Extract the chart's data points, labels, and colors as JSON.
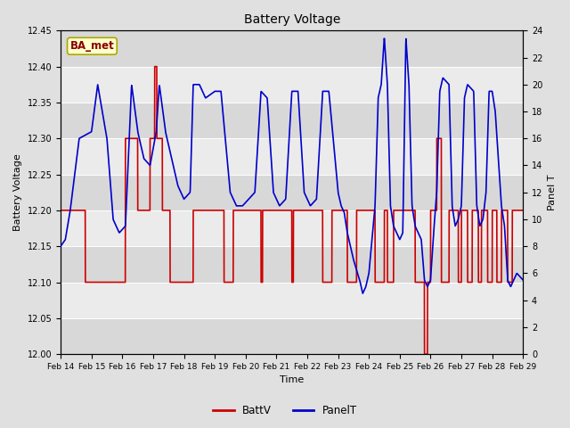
{
  "title": "Battery Voltage",
  "xlabel": "Time",
  "ylabel_left": "Battery Voltage",
  "ylabel_right": "Panel T",
  "annotation": "BA_met",
  "ylim_left": [
    12.0,
    12.45
  ],
  "ylim_right": [
    0,
    24
  ],
  "yticks_left": [
    12.0,
    12.05,
    12.1,
    12.15,
    12.2,
    12.25,
    12.3,
    12.35,
    12.4,
    12.45
  ],
  "yticks_right": [
    0,
    2,
    4,
    6,
    8,
    10,
    12,
    14,
    16,
    18,
    20,
    22,
    24
  ],
  "xtick_labels": [
    "Feb 14",
    "Feb 15",
    "Feb 16",
    "Feb 17",
    "Feb 18",
    "Feb 19",
    "Feb 20",
    "Feb 21",
    "Feb 22",
    "Feb 23",
    "Feb 24",
    "Feb 25",
    "Feb 26",
    "Feb 27",
    "Feb 28",
    "Feb 29"
  ],
  "bg_outer": "#e0e0e0",
  "bg_band1": "#d8d8d8",
  "bg_band2": "#ebebeb",
  "color_battv": "#cc0000",
  "color_panelt": "#0000cc",
  "linewidth_battv": 1.2,
  "linewidth_panelt": 1.2
}
